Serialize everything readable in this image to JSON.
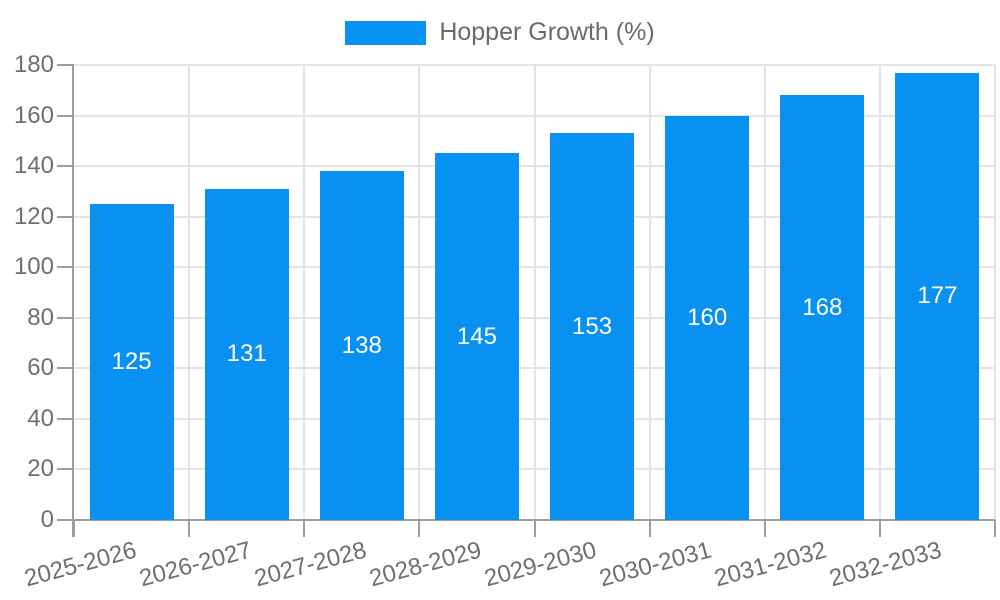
{
  "chart_data": {
    "type": "bar",
    "title": "",
    "legend_label": "Hopper Growth (%)",
    "legend_position": "top-center",
    "categories": [
      "2025-2026",
      "2026-2027",
      "2027-2028",
      "2028-2029",
      "2029-2030",
      "2030-2031",
      "2031-2032",
      "2032-2033"
    ],
    "series": [
      {
        "name": "Hopper Growth (%)",
        "values": [
          125,
          131,
          138,
          145,
          153,
          160,
          168,
          177
        ]
      }
    ],
    "value_labels_shown": true,
    "value_label_position": "inside-center",
    "xlabel": "",
    "ylabel": "",
    "ylim": [
      0,
      180
    ],
    "yticks": [
      0,
      20,
      40,
      60,
      80,
      100,
      120,
      140,
      160,
      180
    ],
    "grid": true,
    "x_tick_label_rotation_deg": -15,
    "colors": {
      "bar": "#0991f2",
      "grid": "#e4e4e4",
      "axis": "#9e9e9e",
      "tick_text": "#6f6f6f",
      "legend_text": "#6b6b6b",
      "value_text": "#ffffff",
      "background": "#ffffff"
    }
  }
}
